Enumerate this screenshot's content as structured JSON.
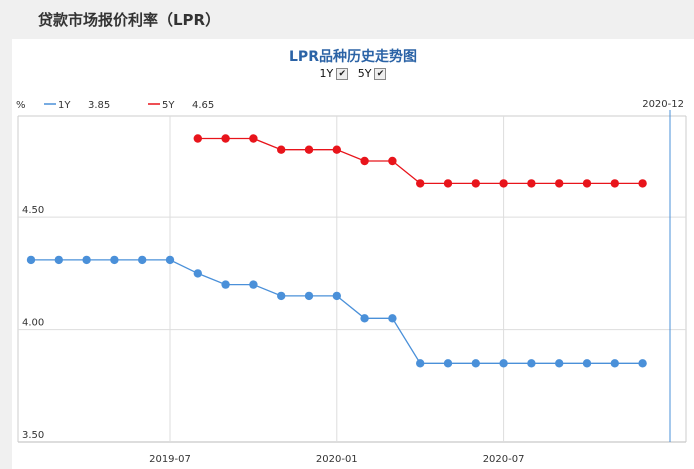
{
  "page": {
    "title": "贷款市场报价利率（LPR）"
  },
  "legend_toggles": [
    {
      "label": "1Y",
      "checked": true
    },
    {
      "label": "5Y",
      "checked": true
    }
  ],
  "legend_values": [
    {
      "name": "1Y",
      "value": "3.85",
      "color": "#4a90d9"
    },
    {
      "name": "5Y",
      "value": "4.65",
      "color": "#e8141b"
    }
  ],
  "unit_label": "%",
  "cursor_label": "2020-12",
  "chart_data": {
    "type": "line",
    "title": "LPR品种历史走势图",
    "x_ticks": [
      "2019-07",
      "2020-01",
      "2020-07"
    ],
    "ylim": [
      3.5,
      4.95
    ],
    "y_ticks": [
      "3.50",
      "4.00",
      "4.50"
    ],
    "grid": true,
    "legend_position": "top-left",
    "series": [
      {
        "name": "1Y",
        "color": "#4a90d9",
        "x": [
          "2019-02",
          "2019-03",
          "2019-04",
          "2019-05",
          "2019-06",
          "2019-07",
          "2019-08",
          "2019-09",
          "2019-10",
          "2019-11",
          "2019-12",
          "2020-01",
          "2020-02",
          "2020-03",
          "2020-04",
          "2020-05",
          "2020-06",
          "2020-07",
          "2020-08",
          "2020-09",
          "2020-10",
          "2020-11",
          "2020-12"
        ],
        "values": [
          4.31,
          4.31,
          4.31,
          4.31,
          4.31,
          4.31,
          4.25,
          4.2,
          4.2,
          4.15,
          4.15,
          4.15,
          4.05,
          4.05,
          3.85,
          3.85,
          3.85,
          3.85,
          3.85,
          3.85,
          3.85,
          3.85,
          3.85
        ]
      },
      {
        "name": "5Y",
        "color": "#e8141b",
        "x": [
          "2019-08",
          "2019-09",
          "2019-10",
          "2019-11",
          "2019-12",
          "2020-01",
          "2020-02",
          "2020-03",
          "2020-04",
          "2020-05",
          "2020-06",
          "2020-07",
          "2020-08",
          "2020-09",
          "2020-10",
          "2020-11",
          "2020-12"
        ],
        "values": [
          4.85,
          4.85,
          4.85,
          4.8,
          4.8,
          4.8,
          4.75,
          4.75,
          4.65,
          4.65,
          4.65,
          4.65,
          4.65,
          4.65,
          4.65,
          4.65,
          4.65
        ]
      }
    ]
  }
}
